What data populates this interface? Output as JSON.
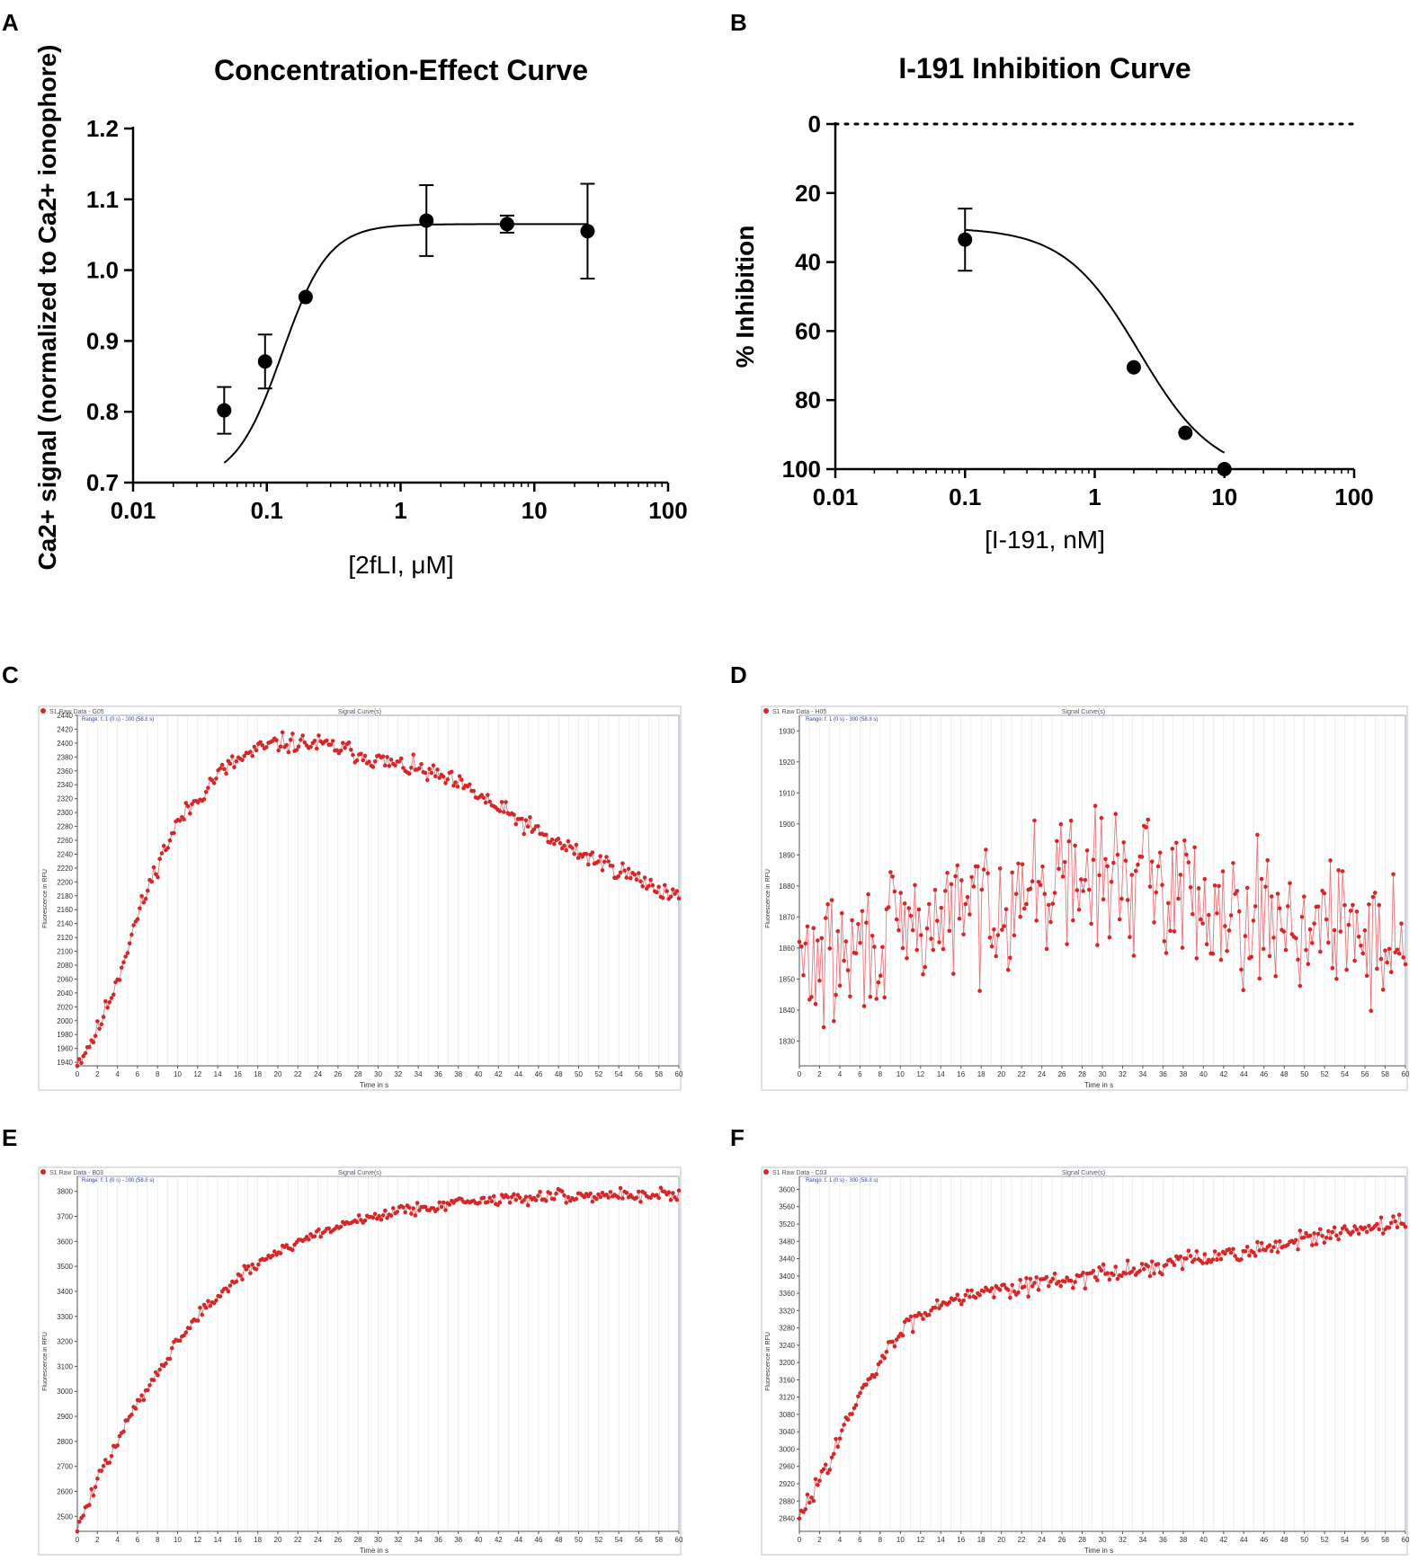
{
  "chart_data": [
    {
      "panel": "A",
      "type": "scatter",
      "title": "Concentration-Effect Curve",
      "xlabel": "[2fLI, μM]",
      "ylabel": "Ca2+ signal (normalized to Ca2+ ionophore)",
      "xscale": "log",
      "xlim": [
        0.01,
        100
      ],
      "ylim": [
        0.7,
        1.2
      ],
      "xticks": [
        "0.01",
        "0.1",
        "1",
        "10",
        "100"
      ],
      "xtick_values": [
        0.01,
        0.1,
        1,
        10,
        100
      ],
      "yticks": [
        "0.7",
        "0.8",
        "0.9",
        "1.0",
        "1.1",
        "1.2"
      ],
      "ytick_values": [
        0.7,
        0.8,
        0.9,
        1.0,
        1.1,
        1.2
      ],
      "points": [
        {
          "x": 0.048,
          "y": 0.802,
          "err": 0.033
        },
        {
          "x": 0.097,
          "y": 0.871,
          "err": 0.038
        },
        {
          "x": 0.195,
          "y": 0.962,
          "err": 0
        },
        {
          "x": 1.56,
          "y": 1.07,
          "err": 0.05
        },
        {
          "x": 6.25,
          "y": 1.065,
          "err": 0.012
        },
        {
          "x": 25.0,
          "y": 1.055,
          "err": 0.067
        }
      ],
      "fit": {
        "model": "hill",
        "bottom": 0.7,
        "top": 1.065,
        "ec50": 0.13,
        "hill": 2.5,
        "xrange": [
          0.048,
          25
        ]
      }
    },
    {
      "panel": "B",
      "type": "scatter",
      "title": "I-191 Inhibition Curve",
      "xlabel": "[I-191, nM]",
      "ylabel": "% Inhibition",
      "xscale": "log",
      "xlim": [
        0.01,
        100
      ],
      "ylim": [
        0,
        100
      ],
      "y_inverted": true,
      "reference_line": 0,
      "xticks": [
        "0.01",
        "0.1",
        "1",
        "10",
        "100"
      ],
      "xtick_values": [
        0.01,
        0.1,
        1,
        10,
        100
      ],
      "yticks": [
        "0",
        "20",
        "40",
        "60",
        "80",
        "100"
      ],
      "ytick_values": [
        0,
        20,
        40,
        60,
        80,
        100
      ],
      "points": [
        {
          "x": 0.1,
          "y": 33.5,
          "err": 9
        },
        {
          "x": 2.0,
          "y": 70.5,
          "err": 0
        },
        {
          "x": 5.0,
          "y": 89.5,
          "err": 0
        },
        {
          "x": 10.0,
          "y": 100,
          "err": 0
        }
      ],
      "fit": {
        "model": "hill",
        "bottom": 30,
        "top": 102,
        "ec50": 2.2,
        "hill": 1.5,
        "xrange": [
          0.1,
          10
        ]
      }
    },
    {
      "panel": "C",
      "type": "line",
      "legend": "S1 Raw Data - G05",
      "title": "Signal Curve(s)",
      "range_label": "Range: f. 1 (0 s) - 300 (58.8 s)",
      "xlabel": "Time in s",
      "ylabel": "Fluorescence in RFU",
      "xlim": [
        0,
        60
      ],
      "ylim": [
        1935,
        2440
      ],
      "xticks": [
        0,
        2,
        4,
        6,
        8,
        10,
        12,
        14,
        16,
        18,
        20,
        22,
        24,
        26,
        28,
        30,
        32,
        34,
        36,
        38,
        40,
        42,
        44,
        46,
        48,
        50,
        52,
        54,
        56,
        58,
        60
      ],
      "yticks": [
        1940,
        1960,
        1980,
        2000,
        2020,
        2040,
        2060,
        2080,
        2100,
        2120,
        2140,
        2160,
        2180,
        2200,
        2220,
        2240,
        2260,
        2280,
        2300,
        2320,
        2340,
        2360,
        2380,
        2400,
        2420,
        2440
      ],
      "trend": [
        [
          0,
          1938
        ],
        [
          2,
          1985
        ],
        [
          4,
          2060
        ],
        [
          6,
          2150
        ],
        [
          8,
          2225
        ],
        [
          10,
          2285
        ],
        [
          12,
          2320
        ],
        [
          14,
          2355
        ],
        [
          16,
          2375
        ],
        [
          18,
          2390
        ],
        [
          20,
          2400
        ],
        [
          22,
          2400
        ],
        [
          24,
          2398
        ],
        [
          26,
          2393
        ],
        [
          28,
          2385
        ],
        [
          30,
          2375
        ],
        [
          32,
          2368
        ],
        [
          34,
          2362
        ],
        [
          36,
          2352
        ],
        [
          38,
          2340
        ],
        [
          40,
          2325
        ],
        [
          42,
          2305
        ],
        [
          44,
          2290
        ],
        [
          46,
          2270
        ],
        [
          48,
          2255
        ],
        [
          50,
          2242
        ],
        [
          52,
          2230
        ],
        [
          54,
          2218
        ],
        [
          56,
          2203
        ],
        [
          58,
          2190
        ],
        [
          60,
          2180
        ]
      ],
      "noise": 10
    },
    {
      "panel": "D",
      "type": "line",
      "legend": "S1 Raw Data - H05",
      "title": "Signal Curve(s)",
      "range_label": "Range: f. 1 (0 s) - 300 (58.8 s)",
      "xlabel": "Time in s",
      "ylabel": "Fluorescence in RFU",
      "xlim": [
        0,
        60
      ],
      "ylim": [
        1822,
        1935
      ],
      "xticks": [
        0,
        2,
        4,
        6,
        8,
        10,
        12,
        14,
        16,
        18,
        20,
        22,
        24,
        26,
        28,
        30,
        32,
        34,
        36,
        38,
        40,
        42,
        44,
        46,
        48,
        50,
        52,
        54,
        56,
        58,
        60
      ],
      "yticks": [
        1830,
        1840,
        1850,
        1860,
        1870,
        1880,
        1890,
        1900,
        1910,
        1920,
        1930
      ],
      "trend": [
        [
          0,
          1855
        ],
        [
          4,
          1856
        ],
        [
          8,
          1862
        ],
        [
          12,
          1866
        ],
        [
          16,
          1872
        ],
        [
          20,
          1876
        ],
        [
          24,
          1880
        ],
        [
          28,
          1882
        ],
        [
          32,
          1883
        ],
        [
          36,
          1880
        ],
        [
          40,
          1876
        ],
        [
          44,
          1872
        ],
        [
          48,
          1869
        ],
        [
          52,
          1866
        ],
        [
          56,
          1864
        ],
        [
          60,
          1862
        ]
      ],
      "noise": 15
    },
    {
      "panel": "E",
      "type": "line",
      "legend": "S1 Raw Data - B03",
      "title": "Signal Curve(s)",
      "range_label": "Range: f. 1 (0 s) - 300 (58.8 s)",
      "xlabel": "Time in s",
      "ylabel": "Fluorescence in RFU",
      "xlim": [
        0,
        60
      ],
      "ylim": [
        2440,
        3860
      ],
      "xticks": [
        0,
        2,
        4,
        6,
        8,
        10,
        12,
        14,
        16,
        18,
        20,
        22,
        24,
        26,
        28,
        30,
        32,
        34,
        36,
        38,
        40,
        42,
        44,
        46,
        48,
        50,
        52,
        54,
        56,
        58,
        60
      ],
      "yticks": [
        2500,
        2600,
        2700,
        2800,
        2900,
        3000,
        3100,
        3200,
        3300,
        3400,
        3500,
        3600,
        3700,
        3800
      ],
      "trend": [
        [
          0,
          2450
        ],
        [
          2,
          2640
        ],
        [
          4,
          2800
        ],
        [
          6,
          2950
        ],
        [
          8,
          3080
        ],
        [
          10,
          3200
        ],
        [
          12,
          3300
        ],
        [
          14,
          3380
        ],
        [
          16,
          3450
        ],
        [
          18,
          3510
        ],
        [
          20,
          3560
        ],
        [
          22,
          3600
        ],
        [
          24,
          3630
        ],
        [
          26,
          3660
        ],
        [
          28,
          3685
        ],
        [
          30,
          3705
        ],
        [
          32,
          3720
        ],
        [
          34,
          3735
        ],
        [
          36,
          3745
        ],
        [
          38,
          3755
        ],
        [
          40,
          3762
        ],
        [
          42,
          3768
        ],
        [
          44,
          3772
        ],
        [
          46,
          3776
        ],
        [
          48,
          3780
        ],
        [
          50,
          3782
        ],
        [
          52,
          3784
        ],
        [
          54,
          3786
        ],
        [
          56,
          3787
        ],
        [
          58,
          3788
        ],
        [
          60,
          3789
        ]
      ],
      "noise": 18
    },
    {
      "panel": "F",
      "type": "line",
      "legend": "S1 Raw Data - C03",
      "title": "Signal Curve(s)",
      "range_label": "Range: f. 1 (0 s) - 300 (58.8 s)",
      "xlabel": "Time in s",
      "ylabel": "Fluorescence in RFU",
      "xlim": [
        0,
        60
      ],
      "ylim": [
        2810,
        3630
      ],
      "xticks": [
        0,
        2,
        4,
        6,
        8,
        10,
        12,
        14,
        16,
        18,
        20,
        22,
        24,
        26,
        28,
        30,
        32,
        34,
        36,
        38,
        40,
        42,
        44,
        46,
        48,
        50,
        52,
        54,
        56,
        58,
        60
      ],
      "yticks": [
        2840,
        2880,
        2920,
        2960,
        3000,
        3040,
        3080,
        3120,
        3160,
        3200,
        3240,
        3280,
        3320,
        3360,
        3400,
        3440,
        3480,
        3520,
        3560,
        3600
      ],
      "trend": [
        [
          0,
          2835
        ],
        [
          2,
          2930
        ],
        [
          4,
          3030
        ],
        [
          6,
          3120
        ],
        [
          8,
          3200
        ],
        [
          10,
          3270
        ],
        [
          12,
          3310
        ],
        [
          14,
          3340
        ],
        [
          16,
          3355
        ],
        [
          18,
          3365
        ],
        [
          20,
          3372
        ],
        [
          22,
          3378
        ],
        [
          24,
          3385
        ],
        [
          26,
          3390
        ],
        [
          28,
          3397
        ],
        [
          30,
          3403
        ],
        [
          32,
          3410
        ],
        [
          34,
          3417
        ],
        [
          36,
          3424
        ],
        [
          38,
          3432
        ],
        [
          40,
          3440
        ],
        [
          42,
          3448
        ],
        [
          44,
          3456
        ],
        [
          46,
          3465
        ],
        [
          48,
          3473
        ],
        [
          50,
          3482
        ],
        [
          52,
          3490
        ],
        [
          54,
          3498
        ],
        [
          56,
          3506
        ],
        [
          58,
          3515
        ],
        [
          60,
          3525
        ]
      ],
      "noise": 15
    }
  ]
}
